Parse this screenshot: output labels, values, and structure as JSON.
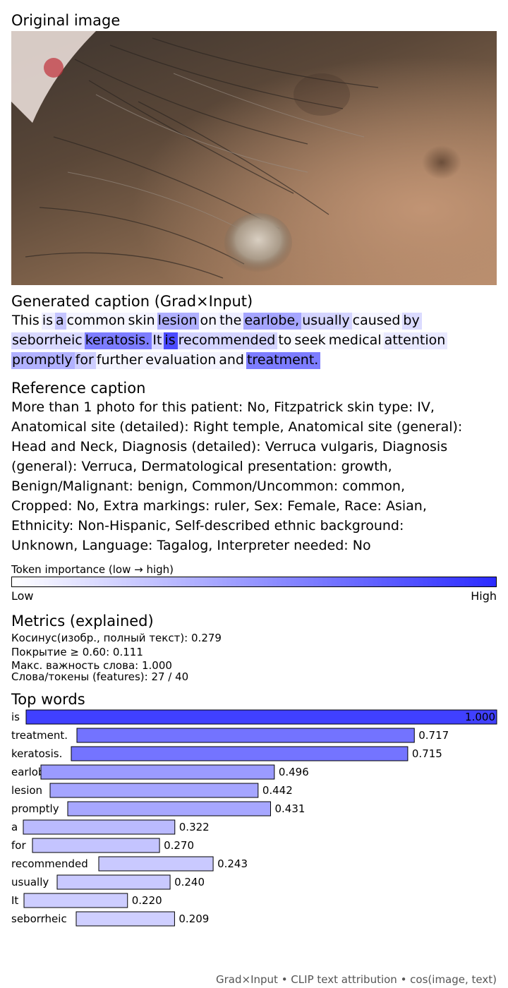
{
  "sections": {
    "original_image_title": "Original image",
    "generated_caption_title": "Generated caption (Grad×Input)",
    "reference_caption_title": "Reference caption",
    "metrics_title": "Metrics (explained)",
    "top_words_title": "Top words"
  },
  "generated_caption": {
    "lines": [
      [
        {
          "text": "This",
          "score": 0
        },
        {
          "text": "is",
          "score": 0.1
        },
        {
          "text": "a",
          "score": 0.32
        },
        {
          "text": "common",
          "score": 0.06
        },
        {
          "text": "skin",
          "score": 0.06
        },
        {
          "text": "lesion",
          "score": 0.44
        },
        {
          "text": "on",
          "score": 0.06
        },
        {
          "text": "the",
          "score": 0.1
        },
        {
          "text": "earlobe,",
          "score": 0.5
        },
        {
          "text": "usually",
          "score": 0.24
        },
        {
          "text": "caused",
          "score": 0.06
        },
        {
          "text": "by",
          "score": 0.2
        }
      ],
      [
        {
          "text": "seborrheic",
          "score": 0.21
        },
        {
          "text": "keratosis.",
          "score": 0.72
        },
        {
          "text": "It",
          "score": 0.22
        },
        {
          "text": "is",
          "score": 1.0
        },
        {
          "text": "recommended",
          "score": 0.24
        },
        {
          "text": "to",
          "score": 0.04
        },
        {
          "text": "seek",
          "score": 0.04
        },
        {
          "text": "medical",
          "score": 0.04
        },
        {
          "text": "attention",
          "score": 0.12
        }
      ],
      [
        {
          "text": "promptly",
          "score": 0.43
        },
        {
          "text": "for",
          "score": 0.27
        },
        {
          "text": "further",
          "score": 0.06
        },
        {
          "text": "evaluation",
          "score": 0.06
        },
        {
          "text": "and",
          "score": 0.06
        },
        {
          "text": "treatment.",
          "score": 0.72
        }
      ]
    ]
  },
  "reference_caption": {
    "lines": [
      "More than 1 photo for this patient: No, Fitzpatrick skin type: IV,",
      "Anatomical site (detailed): Right temple, Anatomical site (general):",
      "Head and Neck, Diagnosis (detailed): Verruca vulgaris, Diagnosis",
      "(general): Verruca, Dermatological presentation: growth,",
      "Benign/Malignant: benign, Common/Uncommon: common,",
      "Cropped: No, Extra markings: ruler, Sex: Female, Race: Asian,",
      "Ethnicity: Non-Hispanic, Self-described ethnic background:",
      "Unknown, Language: Tagalog, Interpreter needed: No"
    ]
  },
  "colorbar": {
    "title": "Token importance (low → high)",
    "low_label": "Low",
    "high_label": "High",
    "color_low": "#ffffff",
    "color_high": "#2b2bff"
  },
  "metrics": {
    "cosine": "Косинус(изобр., полный текст): 0.279",
    "coverage": "Покрытие ≥ 0.60: 0.111",
    "max_importance": "Макс. важность слова: 1.000",
    "words_tokens": "Слова/токены (features): 27 / 40"
  },
  "chart_data": {
    "type": "bar",
    "orientation": "horizontal",
    "title": "Top words",
    "xlim": [
      0,
      1
    ],
    "categories": [
      "is",
      "treatment.",
      "keratosis.",
      "earlobe,",
      "lesion",
      "promptly",
      "a",
      "for",
      "recommended",
      "usually",
      "It",
      "seborrheic"
    ],
    "values": [
      1.0,
      0.717,
      0.715,
      0.496,
      0.442,
      0.431,
      0.322,
      0.27,
      0.243,
      0.24,
      0.22,
      0.209
    ],
    "value_labels": [
      "1.000",
      "0.717",
      "0.715",
      "0.496",
      "0.442",
      "0.431",
      "0.322",
      "0.270",
      "0.243",
      "0.240",
      "0.220",
      "0.209"
    ]
  },
  "footer": "Grad×Input • CLIP text attribution • cos(image, text)"
}
